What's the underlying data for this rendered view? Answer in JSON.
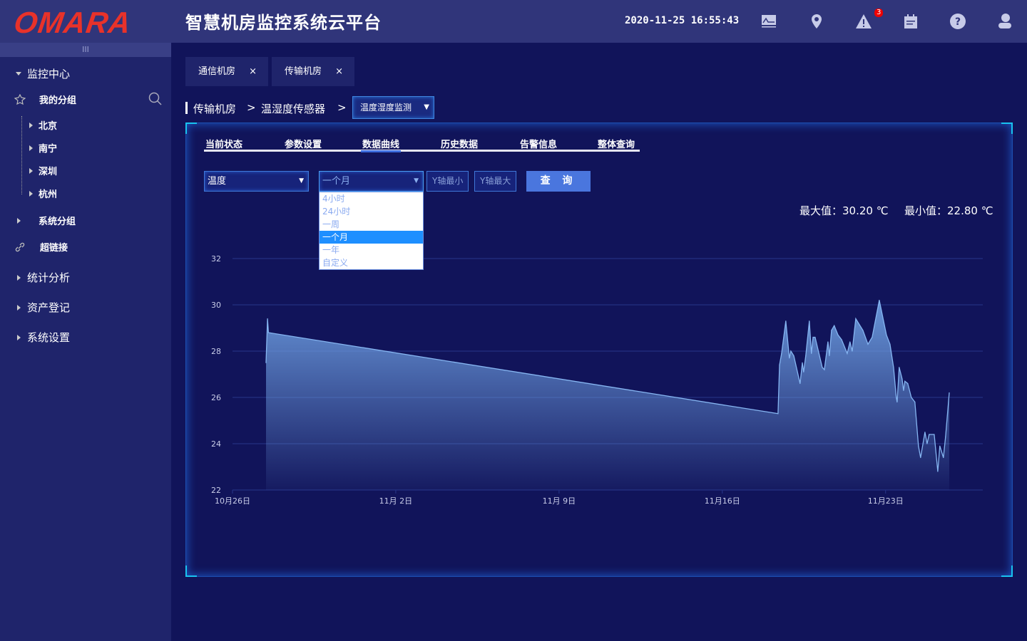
{
  "header": {
    "logo": "OMARA",
    "title": "智慧机房监控系统云平台",
    "datetime": "2020-11-25 16:55:43",
    "alarm_count": "3",
    "icons": [
      "monitor-chart-icon",
      "location-icon",
      "alarm-icon",
      "calendar-icon",
      "help-icon",
      "user-icon"
    ]
  },
  "sidebar": {
    "collapse": "III",
    "monitor_center": "监控中心",
    "my_group": "我的分组",
    "cities": [
      "北京",
      "南宁",
      "深圳",
      "杭州"
    ],
    "system_group": "系统分组",
    "hyperlink": "超链接",
    "stats": "统计分析",
    "assets": "资产登记",
    "settings": "系统设置"
  },
  "tabs": [
    {
      "label": "通信机房",
      "close": "×"
    },
    {
      "label": "传输机房",
      "close": "×"
    }
  ],
  "breadcrumb": {
    "items": [
      "传输机房",
      "温湿度传感器"
    ],
    "sep": ">",
    "current": "温度湿度监测"
  },
  "subtabs": [
    "当前状态",
    "参数设置",
    "数据曲线",
    "历史数据",
    "告警信息",
    "整体查询"
  ],
  "active_subtab": "数据曲线",
  "filters": {
    "metric": "温度",
    "range": "一个月",
    "ymin_placeholder": "Y轴最小",
    "ymax_placeholder": "Y轴最大",
    "query": "查 询",
    "range_options": [
      "4小时",
      "24小时",
      "一周",
      "一个月",
      "一年",
      "自定义"
    ]
  },
  "stats": {
    "max": "最大值：30.20 ℃",
    "min": "最小值：22.80 ℃"
  },
  "colors": {
    "accent": "#4a76de",
    "line": "#7fb0ee",
    "header": "#30357a",
    "sidebar": "#1f246b",
    "background": "#11145a"
  },
  "chart_data": {
    "type": "area",
    "grid": true,
    "ylim": [
      22,
      32
    ],
    "yticks": [
      22,
      24,
      26,
      28,
      30,
      32
    ],
    "xlim": [
      "2020-10-26 00:00",
      "2020-11-27 04:00"
    ],
    "xticks": [
      {
        "date": "2020-10-26",
        "label": "10月26日"
      },
      {
        "date": "2020-11-02",
        "label": "11月 2日"
      },
      {
        "date": "2020-11-09",
        "label": "11月 9日"
      },
      {
        "date": "2020-11-16",
        "label": "11月16日"
      },
      {
        "date": "2020-11-23",
        "label": "11月23日"
      }
    ],
    "points": [
      [
        "2020-10-27 10:30",
        27.5
      ],
      [
        "2020-10-27 12:00",
        29.4
      ],
      [
        "2020-10-27 13:00",
        28.8
      ],
      [
        "2020-11-18 09:20",
        25.3
      ],
      [
        "2020-11-18 10:50",
        27.4
      ],
      [
        "2020-11-18 13:00",
        27.9
      ],
      [
        "2020-11-18 17:20",
        29.3
      ],
      [
        "2020-11-18 21:00",
        27.7
      ],
      [
        "2020-11-18 22:30",
        28.0
      ],
      [
        "2020-11-19 01:30",
        27.8
      ],
      [
        "2020-11-19 08:00",
        26.6
      ],
      [
        "2020-11-19 10:20",
        27.5
      ],
      [
        "2020-11-19 11:40",
        27.1
      ],
      [
        "2020-11-19 13:50",
        27.8
      ],
      [
        "2020-11-19 17:30",
        29.3
      ],
      [
        "2020-11-19 19:40",
        27.9
      ],
      [
        "2020-11-19 21:20",
        28.6
      ],
      [
        "2020-11-19 23:30",
        28.6
      ],
      [
        "2020-11-20 06:50",
        27.3
      ],
      [
        "2020-11-20 09:00",
        27.2
      ],
      [
        "2020-11-20 12:40",
        28.4
      ],
      [
        "2020-11-20 14:10",
        27.8
      ],
      [
        "2020-11-20 16:20",
        28.9
      ],
      [
        "2020-11-20 19:10",
        29.1
      ],
      [
        "2020-11-20 23:00",
        28.7
      ],
      [
        "2020-11-21 02:40",
        28.5
      ],
      [
        "2020-11-21 08:30",
        27.9
      ],
      [
        "2020-11-21 11:20",
        28.4
      ],
      [
        "2020-11-21 13:40",
        28.0
      ],
      [
        "2020-11-21 17:20",
        29.4
      ],
      [
        "2020-11-22 00:40",
        28.9
      ],
      [
        "2020-11-22 05:50",
        28.3
      ],
      [
        "2020-11-22 10:10",
        28.6
      ],
      [
        "2020-11-22 17:30",
        30.2
      ],
      [
        "2020-11-23 00:50",
        28.7
      ],
      [
        "2020-11-23 04:30",
        28.3
      ],
      [
        "2020-11-23 08:10",
        27.3
      ],
      [
        "2020-11-23 11:00",
        26.0
      ],
      [
        "2020-11-23 11:50",
        25.8
      ],
      [
        "2020-11-23 14:00",
        27.3
      ],
      [
        "2020-11-23 17:00",
        26.8
      ],
      [
        "2020-11-23 18:30",
        26.3
      ],
      [
        "2020-11-23 19:50",
        26.7
      ],
      [
        "2020-11-23 22:50",
        26.6
      ],
      [
        "2020-11-24 02:30",
        26.0
      ],
      [
        "2020-11-24 06:10",
        25.8
      ],
      [
        "2020-11-24 09:50",
        23.9
      ],
      [
        "2020-11-24 12:00",
        23.4
      ],
      [
        "2020-11-24 16:30",
        24.5
      ],
      [
        "2020-11-24 18:40",
        24.0
      ],
      [
        "2020-11-24 20:50",
        24.4
      ],
      [
        "2020-11-25 02:00",
        24.4
      ],
      [
        "2020-11-25 05:40",
        22.8
      ],
      [
        "2020-11-25 07:50",
        23.9
      ],
      [
        "2020-11-25 11:30",
        23.4
      ],
      [
        "2020-11-25 13:40",
        24.3
      ],
      [
        "2020-11-25 17:30",
        26.2
      ]
    ]
  }
}
